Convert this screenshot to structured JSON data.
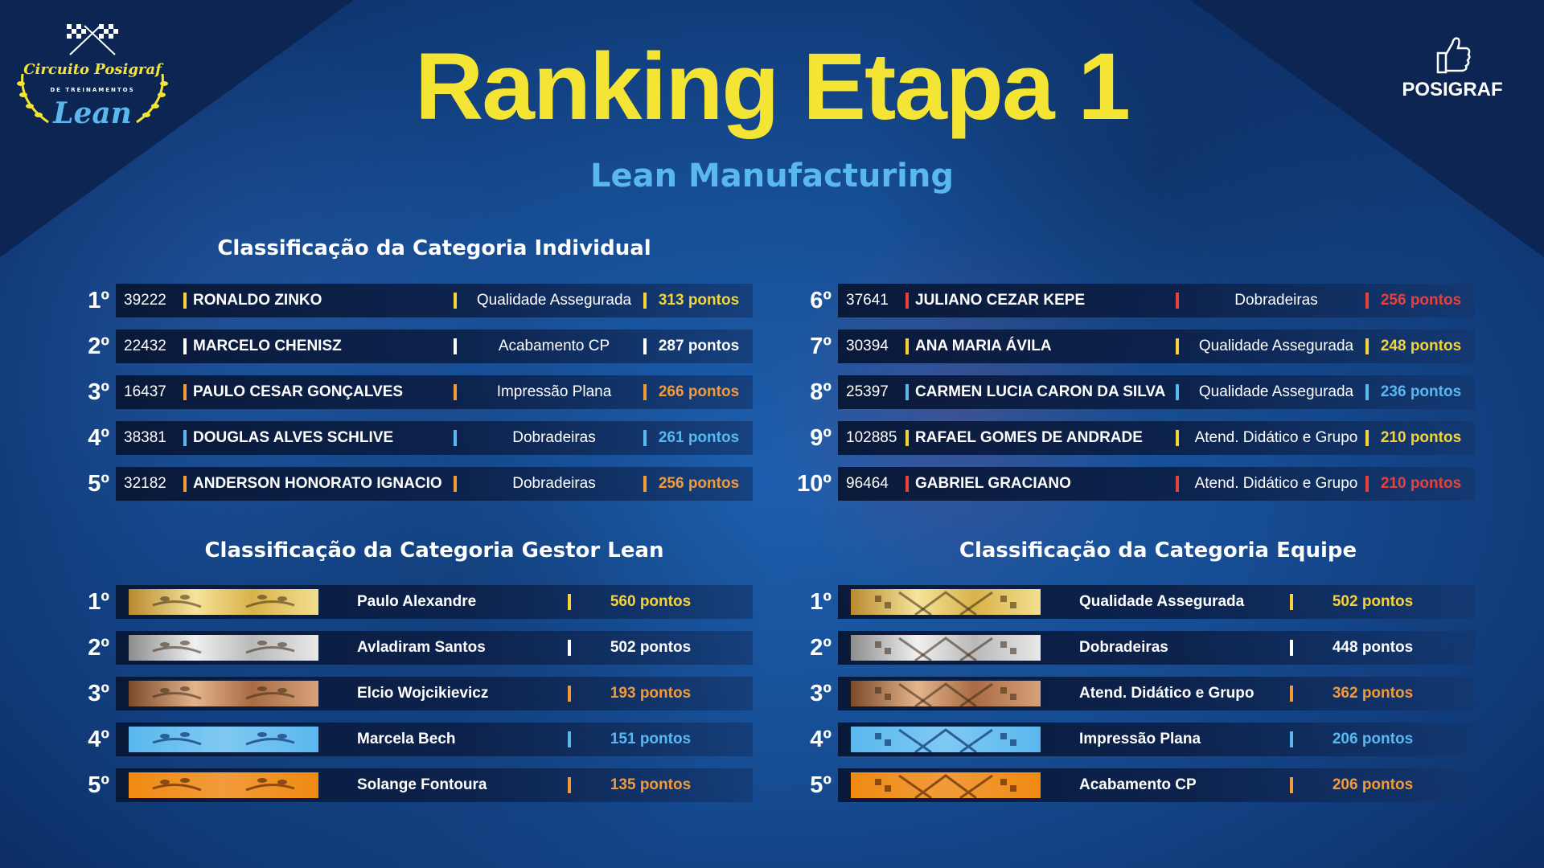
{
  "header": {
    "title": "Ranking Etapa 1",
    "subtitle": "Lean Manufacturing"
  },
  "logo_left": {
    "line1": "Circuito Posigraf",
    "line2": "DE TREINAMENTOS",
    "line3": "Lean"
  },
  "logo_right": {
    "brand": "POSIGRAF"
  },
  "sections": {
    "individual": "Classificação da Categoria Individual",
    "gestor": "Classificação da Categoria Gestor Lean",
    "equipe": "Classificação da Categoria Equipe"
  },
  "colors": {
    "yellow": "#f4e433",
    "white": "#ffffff",
    "orange": "#f29b3b",
    "blue": "#5ab8ee",
    "red": "#e8413b",
    "gold": "#f4d33b"
  },
  "individual": [
    {
      "pos": "1º",
      "id": "39222",
      "name": "RONALDO ZINKO",
      "sector": "Qualidade Assegurada",
      "points": "313 pontos",
      "color": "#f4d33b"
    },
    {
      "pos": "2º",
      "id": "22432",
      "name": "MARCELO CHENISZ",
      "sector": "Acabamento CP",
      "points": "287 pontos",
      "color": "#ffffff"
    },
    {
      "pos": "3º",
      "id": "16437",
      "name": "PAULO CESAR GONÇALVES",
      "sector": "Impressão Plana",
      "points": "266 pontos",
      "color": "#f29b3b"
    },
    {
      "pos": "4º",
      "id": "38381",
      "name": "DOUGLAS ALVES SCHLIVE",
      "sector": "Dobradeiras",
      "points": "261 pontos",
      "color": "#5ab8ee"
    },
    {
      "pos": "5º",
      "id": "32182",
      "name": "ANDERSON HONORATO IGNACIO",
      "sector": "Dobradeiras",
      "points": "256 pontos",
      "color": "#f29b3b"
    },
    {
      "pos": "6º",
      "id": "37641",
      "name": "JULIANO CEZAR KEPE",
      "sector": "Dobradeiras",
      "points": "256 pontos",
      "color": "#e8413b"
    },
    {
      "pos": "7º",
      "id": "30394",
      "name": "ANA MARIA ÁVILA",
      "sector": "Qualidade Assegurada",
      "points": "248 pontos",
      "color": "#f4d33b"
    },
    {
      "pos": "8º",
      "id": "25397",
      "name": "CARMEN LUCIA CARON DA SILVA",
      "sector": "Qualidade Assegurada",
      "points": "236 pontos",
      "color": "#5ab8ee"
    },
    {
      "pos": "9º",
      "id": "102885",
      "name": "RAFAEL GOMES DE ANDRADE",
      "sector": "Atend. Didático e Grupo",
      "points": "210 pontos",
      "color": "#f4d33b"
    },
    {
      "pos": "10º",
      "id": "96464",
      "name": "GABRIEL GRACIANO",
      "sector": "Atend. Didático e Grupo",
      "points": "210 pontos",
      "color": "#e8413b"
    }
  ],
  "gestor": [
    {
      "pos": "1º",
      "name": "Paulo Alexandre",
      "points": "560 pontos",
      "color": "#f4d33b",
      "medal": "gold"
    },
    {
      "pos": "2º",
      "name": "Avladiram Santos",
      "points": "502 pontos",
      "color": "#ffffff",
      "medal": "silver"
    },
    {
      "pos": "3º",
      "name": "Elcio Wojcikievicz",
      "points": "193 pontos",
      "color": "#f29b3b",
      "medal": "bronze"
    },
    {
      "pos": "4º",
      "name": "Marcela Bech",
      "points": "151 pontos",
      "color": "#5ab8ee",
      "medal": "blue"
    },
    {
      "pos": "5º",
      "name": "Solange Fontoura",
      "points": "135 pontos",
      "color": "#f29b3b",
      "medal": "orange"
    }
  ],
  "equipe": [
    {
      "pos": "1º",
      "name": "Qualidade Assegurada",
      "points": "502 pontos",
      "color": "#f4d33b",
      "medal": "gold"
    },
    {
      "pos": "2º",
      "name": "Dobradeiras",
      "points": "448 pontos",
      "color": "#ffffff",
      "medal": "silver"
    },
    {
      "pos": "3º",
      "name": "Atend. Didático e Grupo",
      "points": "362 pontos",
      "color": "#f29b3b",
      "medal": "bronze"
    },
    {
      "pos": "4º",
      "name": "Impressão Plana",
      "points": "206 pontos",
      "color": "#5ab8ee",
      "medal": "blue"
    },
    {
      "pos": "5º",
      "name": "Acabamento CP",
      "points": "206 pontos",
      "color": "#f29b3b",
      "medal": "orange"
    }
  ]
}
